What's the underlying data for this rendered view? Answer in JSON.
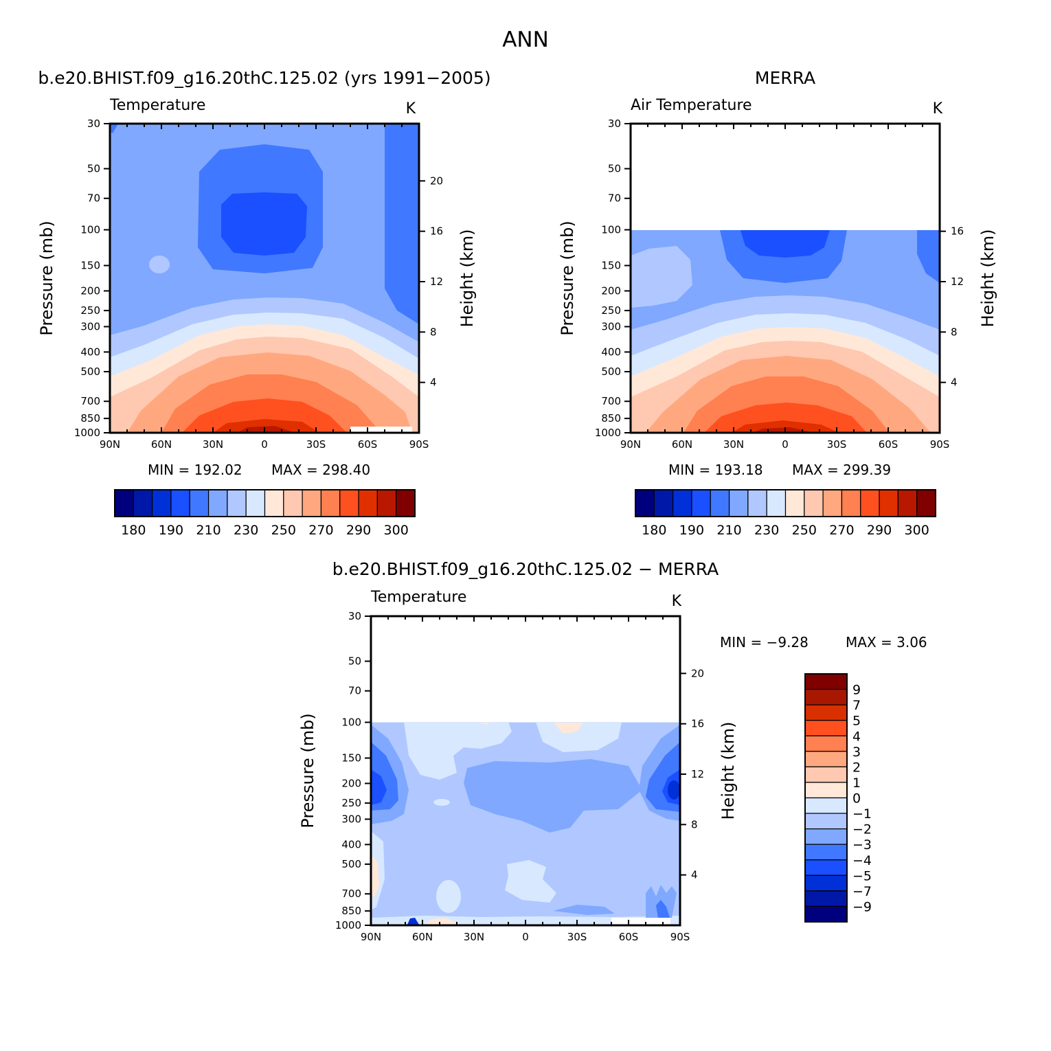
{
  "figure": {
    "title": "ANN",
    "diff_title": "b.e20.BHIST.f09_g16.20thC.125.02 − MERRA"
  },
  "colors": {
    "temperature": [
      "#00007f",
      "#0018a8",
      "#0030d8",
      "#1a50ff",
      "#4078ff",
      "#80a8ff",
      "#b0c8ff",
      "#d8e8ff",
      "#ffe8d8",
      "#ffc8b0",
      "#ffa880",
      "#ff8050",
      "#ff5020",
      "#e03000",
      "#b81800",
      "#800000"
    ],
    "difference": [
      "#00007f",
      "#0018a8",
      "#0030d8",
      "#1a50ff",
      "#4078ff",
      "#80a8ff",
      "#b0c8ff",
      "#d8e8ff",
      "#ffe8d8",
      "#ffc8b0",
      "#ffa880",
      "#ff8050",
      "#ff5020",
      "#d83000",
      "#a81800",
      "#800000"
    ]
  },
  "chart_data": [
    {
      "type": "contour",
      "panel": "model",
      "subtitle": "b.e20.BHIST.f09_g16.20thC.125.02 (yrs 1991−2005)",
      "variable": "Temperature",
      "units": "K",
      "xlabel": "",
      "ylabel": "Pressure (mb)",
      "y2label": "Height (km)",
      "xticks": [
        "90N",
        "60N",
        "30N",
        "0",
        "30S",
        "60S",
        "90S"
      ],
      "xlim": [
        90,
        -90
      ],
      "yticks": [
        30,
        50,
        70,
        100,
        150,
        200,
        250,
        300,
        400,
        500,
        700,
        850,
        1000
      ],
      "ylim": [
        30,
        1000
      ],
      "y2ticks": [
        20,
        16,
        12,
        8,
        4
      ],
      "min_label": "MIN = 192.02",
      "max_label": "MAX = 298.40",
      "min": 192.02,
      "max": 298.4,
      "colorbar": {
        "orientation": "horizontal",
        "levels": [
          180,
          185,
          190,
          200,
          210,
          220,
          230,
          240,
          250,
          260,
          270,
          280,
          290,
          295,
          300
        ],
        "labels": [
          "180",
          "190",
          "210",
          "230",
          "250",
          "270",
          "290",
          "300"
        ],
        "label_levels": [
          180,
          190,
          210,
          230,
          250,
          270,
          290,
          300
        ]
      }
    },
    {
      "type": "contour",
      "panel": "obs",
      "subtitle": "MERRA",
      "variable": "Air Temperature",
      "units": "K",
      "xlabel": "",
      "ylabel": "Pressure (mb)",
      "y2label": "Height (km)",
      "xticks": [
        "90N",
        "60N",
        "30N",
        "0",
        "30S",
        "60S",
        "90S"
      ],
      "xlim": [
        90,
        -90
      ],
      "yticks": [
        30,
        50,
        70,
        100,
        150,
        200,
        250,
        300,
        400,
        500,
        700,
        850,
        1000
      ],
      "ylim": [
        30,
        1000
      ],
      "data_top": 100,
      "y2ticks": [
        16,
        12,
        8,
        4
      ],
      "min_label": "MIN = 193.18",
      "max_label": "MAX = 299.39",
      "min": 193.18,
      "max": 299.39,
      "colorbar": {
        "orientation": "horizontal",
        "levels": [
          180,
          185,
          190,
          200,
          210,
          220,
          230,
          240,
          250,
          260,
          270,
          280,
          290,
          295,
          300
        ],
        "labels": [
          "180",
          "190",
          "210",
          "230",
          "250",
          "270",
          "290",
          "300"
        ],
        "label_levels": [
          180,
          190,
          210,
          230,
          250,
          270,
          290,
          300
        ]
      }
    },
    {
      "type": "contour",
      "panel": "diff",
      "variable": "Temperature",
      "units": "K",
      "xlabel": "",
      "ylabel": "Pressure (mb)",
      "y2label": "Height (km)",
      "xticks": [
        "90N",
        "60N",
        "30N",
        "0",
        "30S",
        "60S",
        "90S"
      ],
      "xlim": [
        90,
        -90
      ],
      "yticks": [
        30,
        50,
        70,
        100,
        150,
        200,
        250,
        300,
        400,
        500,
        700,
        850,
        1000
      ],
      "ylim": [
        30,
        1000
      ],
      "data_top": 100,
      "y2ticks": [
        20,
        16,
        12,
        8,
        4
      ],
      "min_label": "MIN = −9.28",
      "max_label": "MAX = 3.06",
      "min": -9.28,
      "max": 3.06,
      "colorbar": {
        "orientation": "vertical",
        "levels": [
          -9,
          -7,
          -5,
          -4,
          -3,
          -2,
          -1,
          0,
          1,
          2,
          3,
          4,
          5,
          7,
          9
        ],
        "labels": [
          "9",
          "7",
          "5",
          "4",
          "3",
          "2",
          "1",
          "0",
          "−1",
          "−2",
          "−3",
          "−4",
          "−5",
          "−7",
          "−9"
        ]
      }
    }
  ]
}
